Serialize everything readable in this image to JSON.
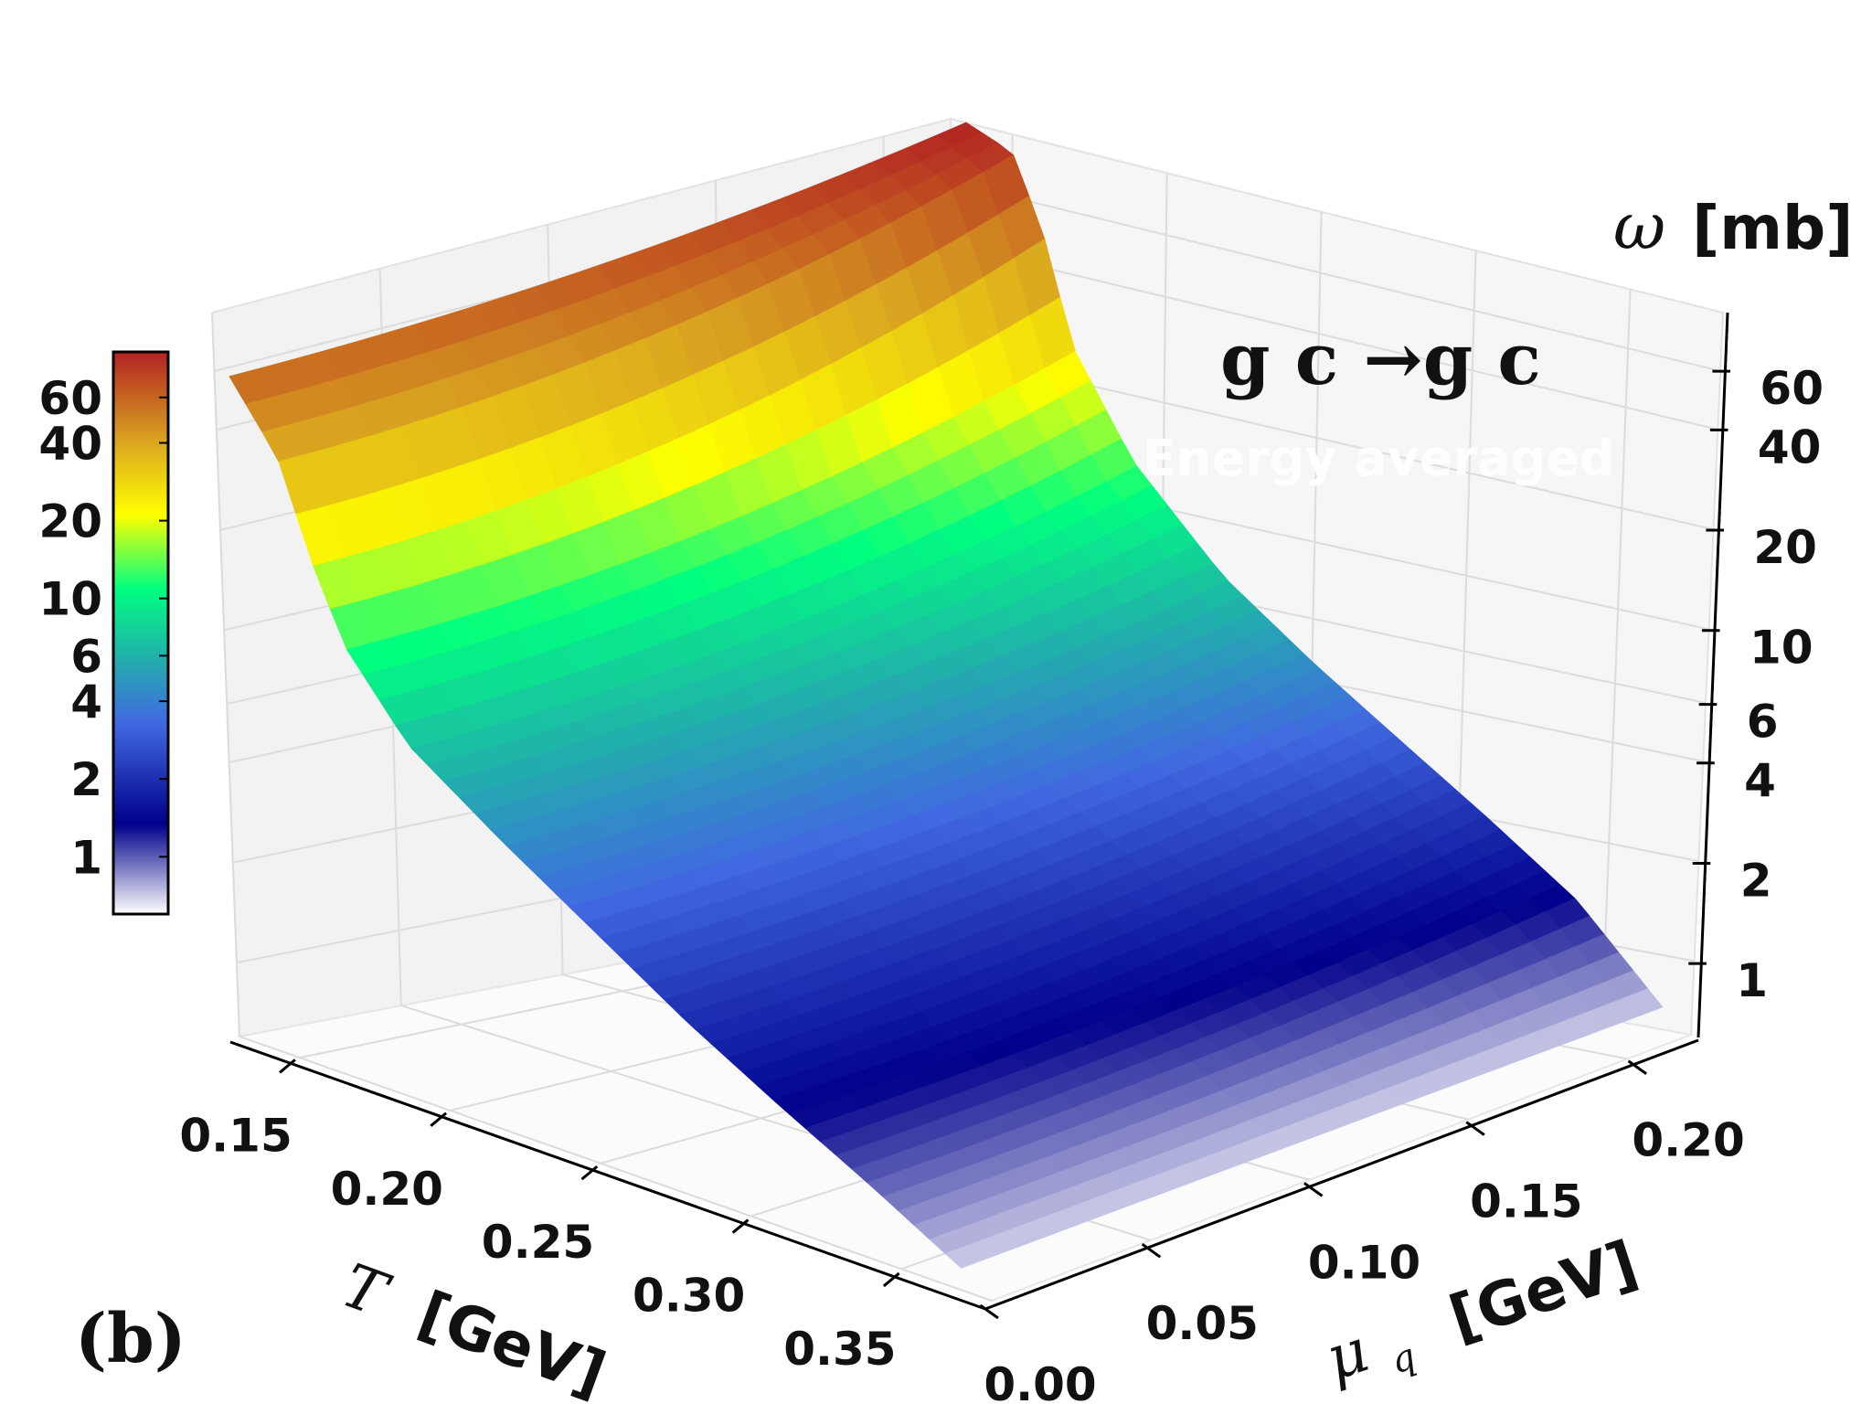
{
  "chart_data": {
    "type": "surface",
    "panel_label": "(b)",
    "process": "g c →g c",
    "annotation": "Energy averaged",
    "x_axis": {
      "symbol": "T",
      "unit": "[GeV]",
      "range": [
        0.13,
        0.38
      ],
      "ticks": [
        "0.15",
        "0.20",
        "0.25",
        "0.30",
        "0.35"
      ],
      "tick_values": [
        0.15,
        0.2,
        0.25,
        0.3,
        0.35
      ]
    },
    "y_axis": {
      "symbol": "μ",
      "subscript": "q",
      "unit": "[GeV]",
      "range": [
        0.0,
        0.22
      ],
      "ticks": [
        "0.00",
        "0.05",
        "0.10",
        "0.15",
        "0.20"
      ],
      "tick_values": [
        0.0,
        0.05,
        0.1,
        0.15,
        0.2
      ]
    },
    "z_axis": {
      "symbol": "ω",
      "unit": "[mb]",
      "scale": "log",
      "range": [
        0.6,
        90
      ],
      "ticks": [
        "1",
        "2",
        "4",
        "6",
        "10",
        "20",
        "40",
        "60"
      ],
      "tick_values": [
        1,
        2,
        4,
        6,
        10,
        20,
        40,
        60
      ]
    },
    "colorbar": {
      "ticks": [
        "1",
        "2",
        "4",
        "6",
        "10",
        "20",
        "40",
        "60"
      ],
      "tick_values": [
        1,
        2,
        4,
        6,
        10,
        20,
        40,
        60
      ],
      "range": [
        0.6,
        90
      ],
      "colors": [
        "#ffffff",
        "#00008b",
        "#4169e1",
        "#20b2aa",
        "#00ff7f",
        "#ffff00",
        "#daa520",
        "#b22222"
      ]
    },
    "surface_profile": {
      "T": [
        0.135,
        0.15,
        0.16,
        0.17,
        0.19,
        0.22,
        0.25,
        0.28,
        0.31,
        0.34,
        0.37
      ],
      "omega_at_mu0": [
        60,
        38,
        20,
        12,
        7,
        4.5,
        3,
        2,
        1.4,
        1.0,
        0.7
      ],
      "omega_at_mu_max": [
        90,
        80,
        50,
        25,
        13,
        7,
        4.5,
        3,
        2,
        1.3,
        0.7
      ]
    }
  }
}
